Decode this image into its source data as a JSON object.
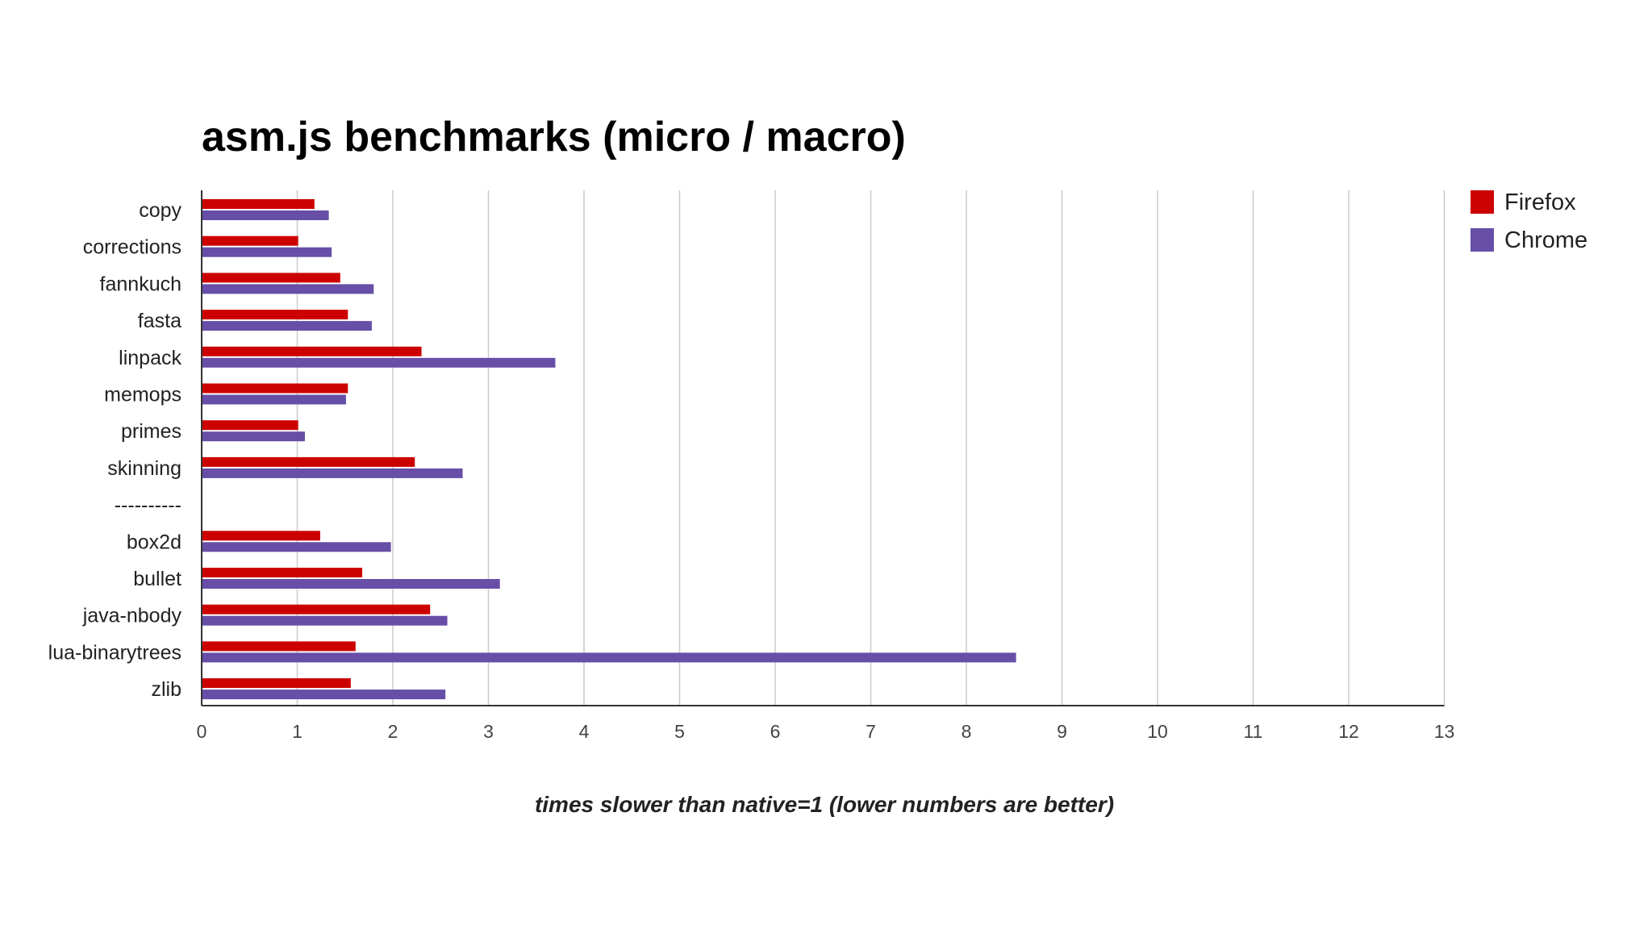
{
  "colors": {
    "firefox": "#cc0000",
    "chrome": "#674ea7",
    "grid": "#cccccc",
    "axis": "#333333"
  },
  "chart_data": {
    "type": "bar",
    "orientation": "horizontal",
    "title": "asm.js benchmarks (micro / macro)",
    "xlabel": "times slower than native=1 (lower numbers are better)",
    "ylabel": "",
    "xlim": [
      0,
      13
    ],
    "x_ticks": [
      "0",
      "1",
      "2",
      "3",
      "4",
      "5",
      "6",
      "7",
      "8",
      "9",
      "10",
      "11",
      "12",
      "13"
    ],
    "grid": true,
    "legend": "top-right",
    "categories": [
      "copy",
      "corrections",
      "fannkuch",
      "fasta",
      "linpack",
      "memops",
      "primes",
      "skinning",
      "----------",
      "box2d",
      "bullet",
      "java-nbody",
      "lua-binarytrees",
      "zlib"
    ],
    "series": [
      {
        "name": "Firefox",
        "color": "#cc0000",
        "values": [
          1.18,
          1.01,
          1.45,
          1.53,
          2.3,
          1.53,
          1.01,
          2.23,
          null,
          1.24,
          1.68,
          2.39,
          1.61,
          1.56
        ]
      },
      {
        "name": "Chrome",
        "color": "#674ea7",
        "values": [
          1.33,
          1.36,
          1.8,
          1.78,
          3.7,
          1.51,
          1.08,
          2.73,
          null,
          1.98,
          3.12,
          2.57,
          8.52,
          2.55
        ]
      }
    ]
  }
}
